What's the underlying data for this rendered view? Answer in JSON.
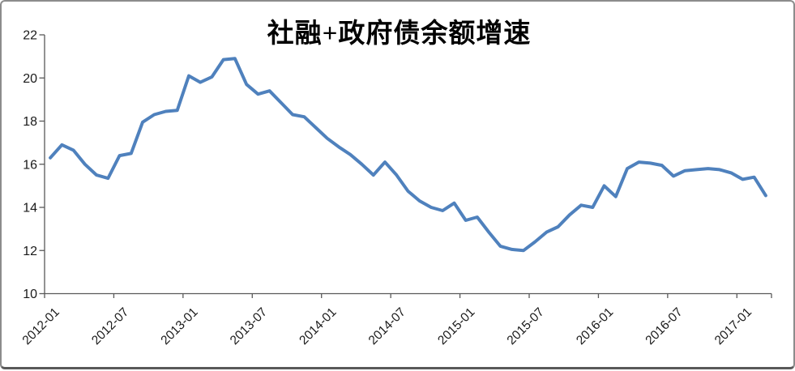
{
  "chart_data": {
    "type": "line",
    "title": "社融+政府债余额增速",
    "legend": null,
    "grid": "off",
    "ylim": [
      10,
      22
    ],
    "y_ticks": [
      10,
      12,
      14,
      16,
      18,
      20,
      22
    ],
    "x_tick_labels": [
      "2012-01",
      "2012-07",
      "2013-01",
      "2013-07",
      "2014-01",
      "2014-07",
      "2015-01",
      "2015-07",
      "2016-01",
      "2016-07",
      "2017-01"
    ],
    "series_color": "#4F81BD",
    "x": [
      "2012-01",
      "2012-02",
      "2012-03",
      "2012-04",
      "2012-05",
      "2012-06",
      "2012-07",
      "2012-08",
      "2012-09",
      "2012-10",
      "2012-11",
      "2012-12",
      "2013-01",
      "2013-02",
      "2013-03",
      "2013-04",
      "2013-05",
      "2013-06",
      "2013-07",
      "2013-08",
      "2013-09",
      "2013-10",
      "2013-11",
      "2013-12",
      "2014-01",
      "2014-02",
      "2014-03",
      "2014-04",
      "2014-05",
      "2014-06",
      "2014-07",
      "2014-08",
      "2014-09",
      "2014-10",
      "2014-11",
      "2014-12",
      "2015-01",
      "2015-02",
      "2015-03",
      "2015-04",
      "2015-05",
      "2015-06",
      "2015-07",
      "2015-08",
      "2015-09",
      "2015-10",
      "2015-11",
      "2015-12",
      "2016-01",
      "2016-02",
      "2016-03",
      "2016-04",
      "2016-05",
      "2016-06",
      "2016-07",
      "2016-08",
      "2016-09",
      "2016-10",
      "2016-11",
      "2016-12",
      "2017-01",
      "2017-02",
      "2017-03"
    ],
    "values": [
      16.3,
      16.9,
      16.65,
      16.0,
      15.5,
      15.35,
      16.4,
      16.5,
      17.95,
      18.3,
      18.45,
      18.5,
      20.1,
      19.8,
      20.05,
      20.85,
      20.9,
      19.7,
      19.25,
      19.4,
      18.85,
      18.3,
      18.2,
      17.7,
      17.2,
      16.8,
      16.45,
      16.0,
      15.5,
      16.1,
      15.5,
      14.75,
      14.3,
      14.0,
      13.85,
      14.2,
      13.4,
      13.55,
      12.85,
      12.2,
      12.05,
      12.0,
      12.4,
      12.85,
      13.1,
      13.65,
      14.1,
      14.0,
      15.0,
      14.5,
      15.8,
      16.1,
      16.05,
      15.95,
      15.45,
      15.7,
      15.75,
      15.8,
      15.75,
      15.6,
      15.3,
      15.4,
      14.55
    ]
  }
}
